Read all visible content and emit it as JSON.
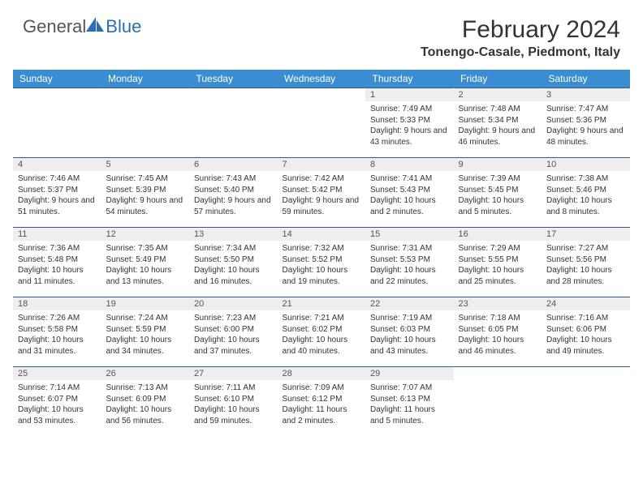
{
  "brand": {
    "part1": "General",
    "part2": "Blue"
  },
  "title": "February 2024",
  "location": "Tonengo-Casale, Piedmont, Italy",
  "colors": {
    "header_bg": "#3a8dd0",
    "header_text": "#ffffff",
    "row_border": "#2f5a8a",
    "daynum_bg": "#eeeeee",
    "logo_blue": "#2a6fb5"
  },
  "weekdays": [
    "Sunday",
    "Monday",
    "Tuesday",
    "Wednesday",
    "Thursday",
    "Friday",
    "Saturday"
  ],
  "weeks": [
    [
      null,
      null,
      null,
      null,
      {
        "n": "1",
        "sr": "7:49 AM",
        "ss": "5:33 PM",
        "dl": "9 hours and 43 minutes."
      },
      {
        "n": "2",
        "sr": "7:48 AM",
        "ss": "5:34 PM",
        "dl": "9 hours and 46 minutes."
      },
      {
        "n": "3",
        "sr": "7:47 AM",
        "ss": "5:36 PM",
        "dl": "9 hours and 48 minutes."
      }
    ],
    [
      {
        "n": "4",
        "sr": "7:46 AM",
        "ss": "5:37 PM",
        "dl": "9 hours and 51 minutes."
      },
      {
        "n": "5",
        "sr": "7:45 AM",
        "ss": "5:39 PM",
        "dl": "9 hours and 54 minutes."
      },
      {
        "n": "6",
        "sr": "7:43 AM",
        "ss": "5:40 PM",
        "dl": "9 hours and 57 minutes."
      },
      {
        "n": "7",
        "sr": "7:42 AM",
        "ss": "5:42 PM",
        "dl": "9 hours and 59 minutes."
      },
      {
        "n": "8",
        "sr": "7:41 AM",
        "ss": "5:43 PM",
        "dl": "10 hours and 2 minutes."
      },
      {
        "n": "9",
        "sr": "7:39 AM",
        "ss": "5:45 PM",
        "dl": "10 hours and 5 minutes."
      },
      {
        "n": "10",
        "sr": "7:38 AM",
        "ss": "5:46 PM",
        "dl": "10 hours and 8 minutes."
      }
    ],
    [
      {
        "n": "11",
        "sr": "7:36 AM",
        "ss": "5:48 PM",
        "dl": "10 hours and 11 minutes."
      },
      {
        "n": "12",
        "sr": "7:35 AM",
        "ss": "5:49 PM",
        "dl": "10 hours and 13 minutes."
      },
      {
        "n": "13",
        "sr": "7:34 AM",
        "ss": "5:50 PM",
        "dl": "10 hours and 16 minutes."
      },
      {
        "n": "14",
        "sr": "7:32 AM",
        "ss": "5:52 PM",
        "dl": "10 hours and 19 minutes."
      },
      {
        "n": "15",
        "sr": "7:31 AM",
        "ss": "5:53 PM",
        "dl": "10 hours and 22 minutes."
      },
      {
        "n": "16",
        "sr": "7:29 AM",
        "ss": "5:55 PM",
        "dl": "10 hours and 25 minutes."
      },
      {
        "n": "17",
        "sr": "7:27 AM",
        "ss": "5:56 PM",
        "dl": "10 hours and 28 minutes."
      }
    ],
    [
      {
        "n": "18",
        "sr": "7:26 AM",
        "ss": "5:58 PM",
        "dl": "10 hours and 31 minutes."
      },
      {
        "n": "19",
        "sr": "7:24 AM",
        "ss": "5:59 PM",
        "dl": "10 hours and 34 minutes."
      },
      {
        "n": "20",
        "sr": "7:23 AM",
        "ss": "6:00 PM",
        "dl": "10 hours and 37 minutes."
      },
      {
        "n": "21",
        "sr": "7:21 AM",
        "ss": "6:02 PM",
        "dl": "10 hours and 40 minutes."
      },
      {
        "n": "22",
        "sr": "7:19 AM",
        "ss": "6:03 PM",
        "dl": "10 hours and 43 minutes."
      },
      {
        "n": "23",
        "sr": "7:18 AM",
        "ss": "6:05 PM",
        "dl": "10 hours and 46 minutes."
      },
      {
        "n": "24",
        "sr": "7:16 AM",
        "ss": "6:06 PM",
        "dl": "10 hours and 49 minutes."
      }
    ],
    [
      {
        "n": "25",
        "sr": "7:14 AM",
        "ss": "6:07 PM",
        "dl": "10 hours and 53 minutes."
      },
      {
        "n": "26",
        "sr": "7:13 AM",
        "ss": "6:09 PM",
        "dl": "10 hours and 56 minutes."
      },
      {
        "n": "27",
        "sr": "7:11 AM",
        "ss": "6:10 PM",
        "dl": "10 hours and 59 minutes."
      },
      {
        "n": "28",
        "sr": "7:09 AM",
        "ss": "6:12 PM",
        "dl": "11 hours and 2 minutes."
      },
      {
        "n": "29",
        "sr": "7:07 AM",
        "ss": "6:13 PM",
        "dl": "11 hours and 5 minutes."
      },
      null,
      null
    ]
  ],
  "labels": {
    "sunrise": "Sunrise:",
    "sunset": "Sunset:",
    "daylight": "Daylight:"
  }
}
